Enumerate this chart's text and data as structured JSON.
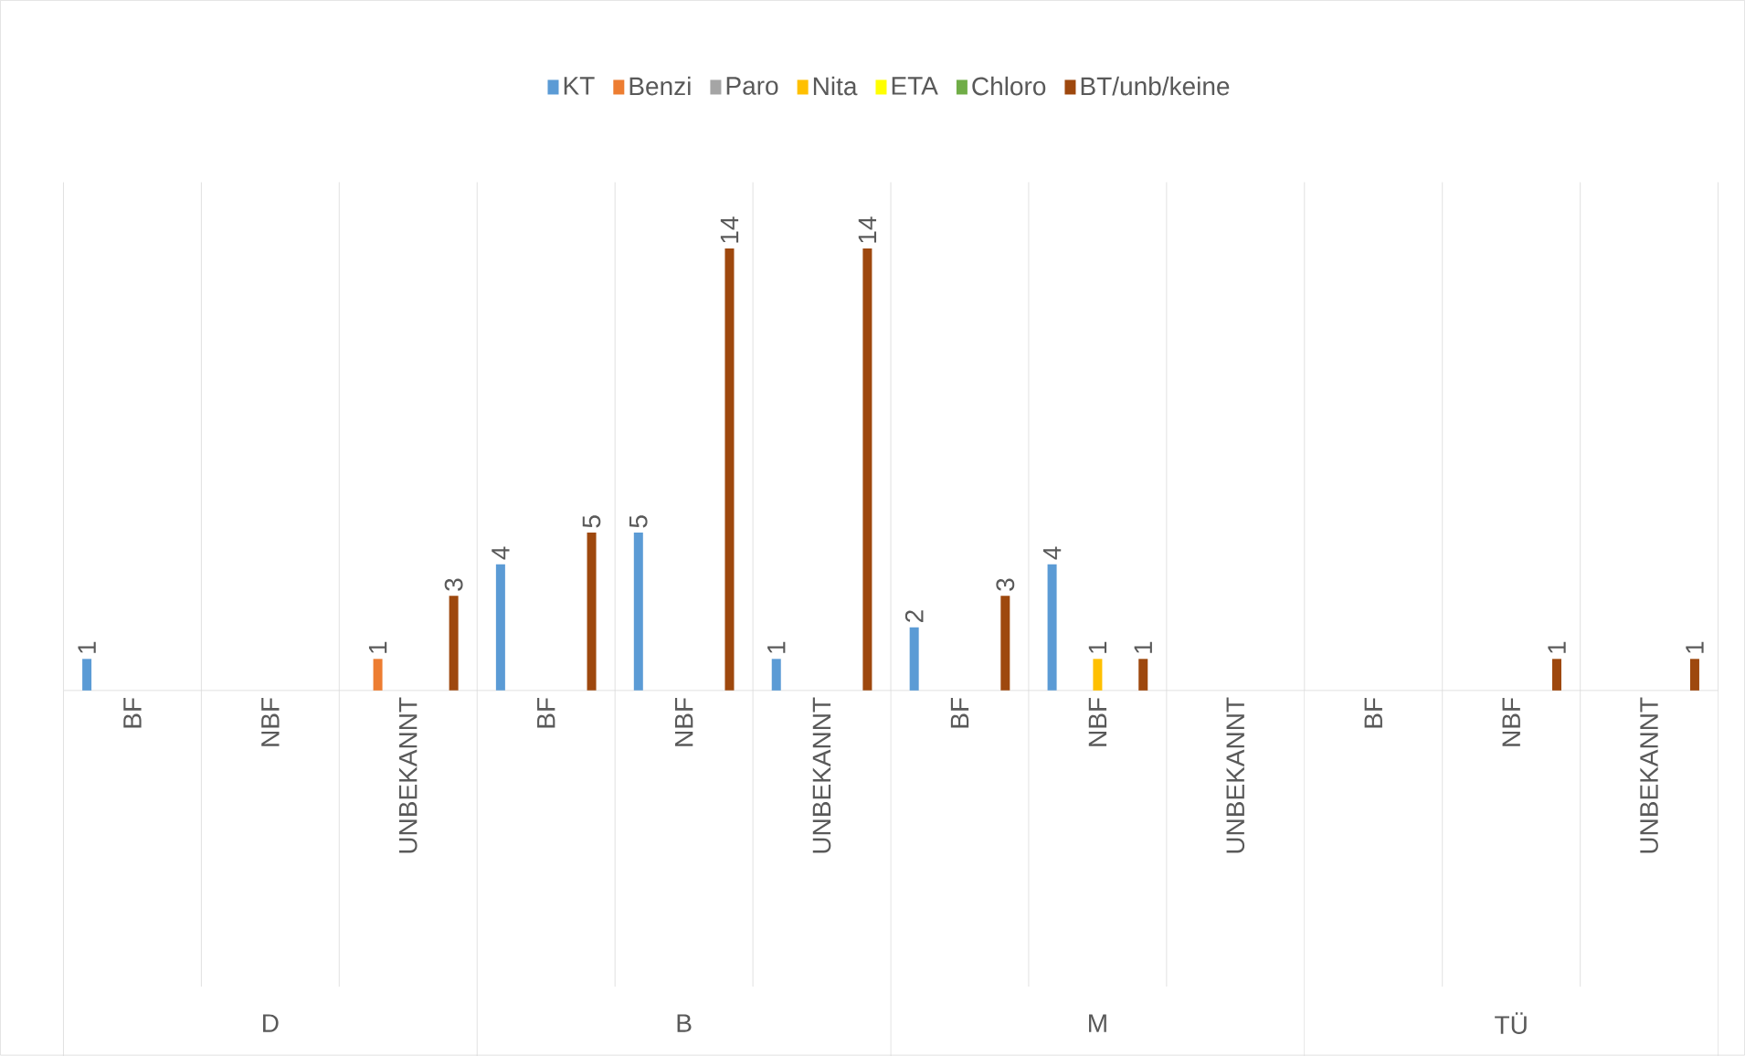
{
  "chart_data": {
    "type": "bar",
    "categories": [
      "BF",
      "NBF",
      "UNBEKANNT",
      "BF",
      "NBF",
      "UNBEKANNT",
      "BF",
      "NBF",
      "UNBEKANNT",
      "BF",
      "NBF",
      "UNBEKANNT"
    ],
    "annotations": [
      "D",
      "B",
      "M",
      "TÜ"
    ],
    "series": [
      {
        "name": "KT",
        "color": "#5b9bd5",
        "values": [
          1,
          null,
          null,
          4,
          5,
          1,
          2,
          4,
          null,
          null,
          null,
          null
        ]
      },
      {
        "name": "Benzi",
        "color": "#ed7d31",
        "values": [
          null,
          null,
          1,
          null,
          null,
          null,
          null,
          null,
          null,
          null,
          null,
          null
        ]
      },
      {
        "name": "Paro",
        "color": "#a5a5a5",
        "values": [
          null,
          null,
          null,
          null,
          null,
          null,
          null,
          null,
          null,
          null,
          null,
          null
        ]
      },
      {
        "name": "Nita",
        "color": "#ffc000",
        "values": [
          null,
          null,
          null,
          null,
          null,
          null,
          null,
          1,
          null,
          null,
          null,
          null
        ]
      },
      {
        "name": "ETA",
        "color": "#ffff00",
        "values": [
          null,
          null,
          null,
          null,
          null,
          null,
          null,
          null,
          null,
          null,
          null,
          null
        ]
      },
      {
        "name": "Chloro",
        "color": "#70ad47",
        "values": [
          null,
          null,
          null,
          null,
          null,
          null,
          null,
          null,
          null,
          null,
          null,
          null
        ]
      },
      {
        "name": "BT/unb/keine",
        "color": "#9e480e",
        "values": [
          null,
          null,
          3,
          5,
          14,
          14,
          3,
          1,
          null,
          null,
          1,
          1
        ]
      }
    ],
    "relative": false,
    "data_labels": true,
    "grid": "x",
    "legend": "top"
  }
}
